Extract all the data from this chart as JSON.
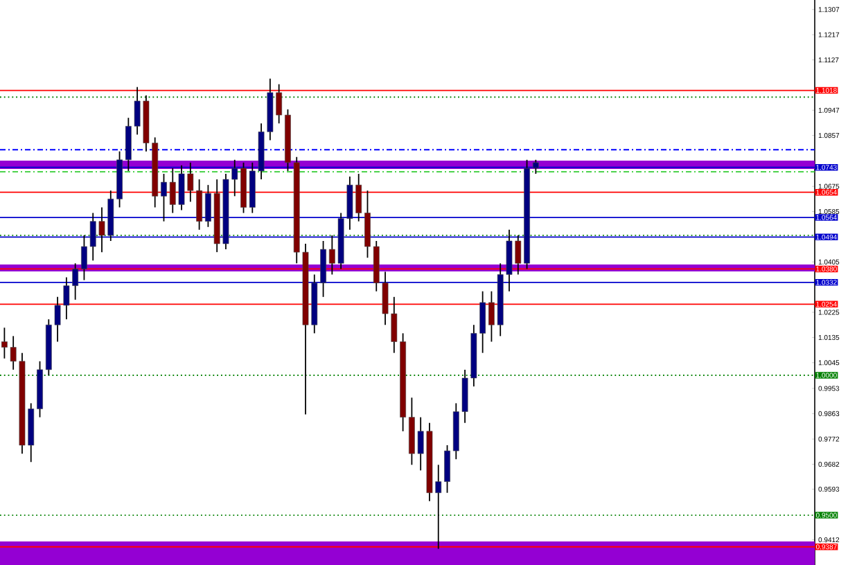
{
  "chart_data": {
    "type": "candlestick",
    "categories": [
      null,
      null,
      null,
      null,
      null,
      null,
      null,
      null,
      null,
      null,
      null,
      null,
      null,
      null,
      null,
      null,
      null,
      null,
      null,
      null,
      null,
      null,
      null,
      null,
      null,
      null,
      null,
      null,
      null,
      null,
      null,
      null,
      null,
      null,
      null,
      null,
      null,
      null,
      null,
      null,
      null,
      null,
      null,
      null,
      null,
      null,
      null,
      null,
      null,
      null,
      null,
      null,
      null,
      null,
      null,
      null,
      null,
      null,
      null,
      null,
      null,
      null,
      null,
      null,
      null,
      null,
      null,
      null,
      null,
      null,
      null,
      null,
      null,
      null,
      null,
      null,
      null,
      null,
      null,
      null,
      null,
      null,
      null,
      null,
      null,
      null,
      null,
      null,
      null,
      null,
      null,
      null
    ],
    "ohlc": [
      [
        1.012,
        1.017,
        1.006,
        1.01
      ],
      [
        1.01,
        1.014,
        1.002,
        1.005
      ],
      [
        1.005,
        1.008,
        0.972,
        0.975
      ],
      [
        0.975,
        0.99,
        0.969,
        0.988
      ],
      [
        0.988,
        1.005,
        0.985,
        1.002
      ],
      [
        1.002,
        1.02,
        1.0,
        1.018
      ],
      [
        1.018,
        1.028,
        1.012,
        1.025
      ],
      [
        1.025,
        1.035,
        1.02,
        1.032
      ],
      [
        1.032,
        1.04,
        1.027,
        1.038
      ],
      [
        1.038,
        1.05,
        1.034,
        1.046
      ],
      [
        1.046,
        1.058,
        1.041,
        1.055
      ],
      [
        1.055,
        1.06,
        1.044,
        1.05
      ],
      [
        1.05,
        1.066,
        1.048,
        1.063
      ],
      [
        1.063,
        1.08,
        1.06,
        1.077
      ],
      [
        1.077,
        1.092,
        1.073,
        1.089
      ],
      [
        1.089,
        1.103,
        1.086,
        1.098
      ],
      [
        1.098,
        1.1,
        1.08,
        1.083
      ],
      [
        1.083,
        1.085,
        1.06,
        1.064
      ],
      [
        1.064,
        1.072,
        1.055,
        1.069
      ],
      [
        1.069,
        1.074,
        1.058,
        1.061
      ],
      [
        1.061,
        1.075,
        1.059,
        1.072
      ],
      [
        1.072,
        1.076,
        1.062,
        1.066
      ],
      [
        1.066,
        1.07,
        1.052,
        1.055
      ],
      [
        1.055,
        1.068,
        1.053,
        1.065
      ],
      [
        1.065,
        1.07,
        1.044,
        1.047
      ],
      [
        1.047,
        1.072,
        1.045,
        1.07
      ],
      [
        1.07,
        1.077,
        1.064,
        1.074
      ],
      [
        1.074,
        1.076,
        1.058,
        1.06
      ],
      [
        1.06,
        1.076,
        1.058,
        1.073
      ],
      [
        1.073,
        1.09,
        1.07,
        1.087
      ],
      [
        1.087,
        1.106,
        1.084,
        1.101
      ],
      [
        1.101,
        1.104,
        1.09,
        1.093
      ],
      [
        1.093,
        1.095,
        1.073,
        1.076
      ],
      [
        1.076,
        1.078,
        1.04,
        1.044
      ],
      [
        1.044,
        1.047,
        0.986,
        1.018
      ],
      [
        1.018,
        1.036,
        1.015,
        1.033
      ],
      [
        1.033,
        1.048,
        1.028,
        1.045
      ],
      [
        1.045,
        1.05,
        1.036,
        1.04
      ],
      [
        1.04,
        1.058,
        1.038,
        1.056
      ],
      [
        1.056,
        1.071,
        1.052,
        1.068
      ],
      [
        1.068,
        1.072,
        1.055,
        1.058
      ],
      [
        1.058,
        1.066,
        1.042,
        1.046
      ],
      [
        1.046,
        1.048,
        1.03,
        1.033
      ],
      [
        1.033,
        1.037,
        1.018,
        1.022
      ],
      [
        1.022,
        1.028,
        1.008,
        1.012
      ],
      [
        1.012,
        1.015,
        0.98,
        0.985
      ],
      [
        0.985,
        0.992,
        0.968,
        0.972
      ],
      [
        0.972,
        0.985,
        0.966,
        0.98
      ],
      [
        0.98,
        0.983,
        0.955,
        0.958
      ],
      [
        0.958,
        0.968,
        0.938,
        0.962
      ],
      [
        0.962,
        0.975,
        0.958,
        0.973
      ],
      [
        0.973,
        0.99,
        0.97,
        0.987
      ],
      [
        0.987,
        1.002,
        0.983,
        0.999
      ],
      [
        0.999,
        1.018,
        0.996,
        1.015
      ],
      [
        1.015,
        1.03,
        1.008,
        1.026
      ],
      [
        1.026,
        1.03,
        1.012,
        1.018
      ],
      [
        1.018,
        1.04,
        1.014,
        1.036
      ],
      [
        1.036,
        1.052,
        1.03,
        1.048
      ],
      [
        1.048,
        1.05,
        1.036,
        1.04
      ],
      [
        1.04,
        1.077,
        1.038,
        1.074
      ],
      [
        1.074,
        1.077,
        1.072,
        1.076
      ],
      null,
      null,
      null,
      null,
      null,
      null,
      null,
      null,
      null,
      null,
      null,
      null,
      null,
      null,
      null,
      null,
      null,
      null,
      null,
      null,
      null,
      null,
      null,
      null,
      null,
      null,
      null,
      null,
      null,
      null,
      null
    ],
    "ylim": [
      0.9322,
      1.1341
    ],
    "yticks": [
      1.1307,
      1.1217,
      1.1127,
      1.0947,
      1.0857,
      1.0675,
      1.0585,
      1.0405,
      1.0225,
      1.0135,
      1.0045,
      0.9953,
      0.9863,
      0.9772,
      0.9682,
      0.9593,
      0.9412
    ],
    "tick_labels": "y",
    "grid": false,
    "bands": [
      {
        "axis": "y",
        "from": 1.0737,
        "to": 1.0767,
        "color": "#9400d3"
      },
      {
        "axis": "y",
        "from": 1.0371,
        "to": 1.0396,
        "color": "#9400d3"
      },
      {
        "axis": "y",
        "from": 0.9322,
        "to": 0.9406,
        "color": "#9400d3"
      }
    ],
    "ref_lines": [
      {
        "axis": "y",
        "value": 1.1018,
        "label": "1.1018",
        "color": "#ff0000",
        "line_style": "solid"
      },
      {
        "axis": "y",
        "value": 1.0994,
        "color": "#008000",
        "line_style": "dotted"
      },
      {
        "axis": "y",
        "value": 1.0806,
        "color": "#0000ff",
        "line_style": "dashdot"
      },
      {
        "axis": "y",
        "value": 1.0743,
        "label": "1.0743",
        "color": "#0000cd",
        "line_style": "solid"
      },
      {
        "axis": "y",
        "value": 1.0727,
        "color": "#32cd32",
        "line_style": "dashdot"
      },
      {
        "axis": "y",
        "value": 1.0654,
        "label": "1.0654",
        "color": "#ff0000",
        "line_style": "solid"
      },
      {
        "axis": "y",
        "value": 1.0564,
        "label": "1.0564",
        "color": "#0000cd",
        "line_style": "solid"
      },
      {
        "axis": "y",
        "value": 1.05,
        "color": "#008000",
        "line_style": "dotted"
      },
      {
        "axis": "y",
        "value": 1.0494,
        "label": "1.0494",
        "color": "#0000cd",
        "line_style": "solid"
      },
      {
        "axis": "y",
        "value": 1.038,
        "label": "1.0380",
        "color": "#ff0000",
        "line_style": "solid"
      },
      {
        "axis": "y",
        "value": 1.0332,
        "label": "1.0332",
        "color": "#0000cd",
        "line_style": "solid"
      },
      {
        "axis": "y",
        "value": 1.0254,
        "label": "1.0254",
        "color": "#ff0000",
        "line_style": "solid"
      },
      {
        "axis": "y",
        "value": 1.0,
        "label": "1.0000",
        "color": "#008000",
        "line_style": "dotted"
      },
      {
        "axis": "y",
        "value": 0.95,
        "label": "0.9500",
        "color": "#008000",
        "line_style": "dotted"
      },
      {
        "axis": "y",
        "value": 0.9387,
        "label": "0.9387",
        "color": "#ff0000",
        "line_style": "solid"
      }
    ]
  }
}
